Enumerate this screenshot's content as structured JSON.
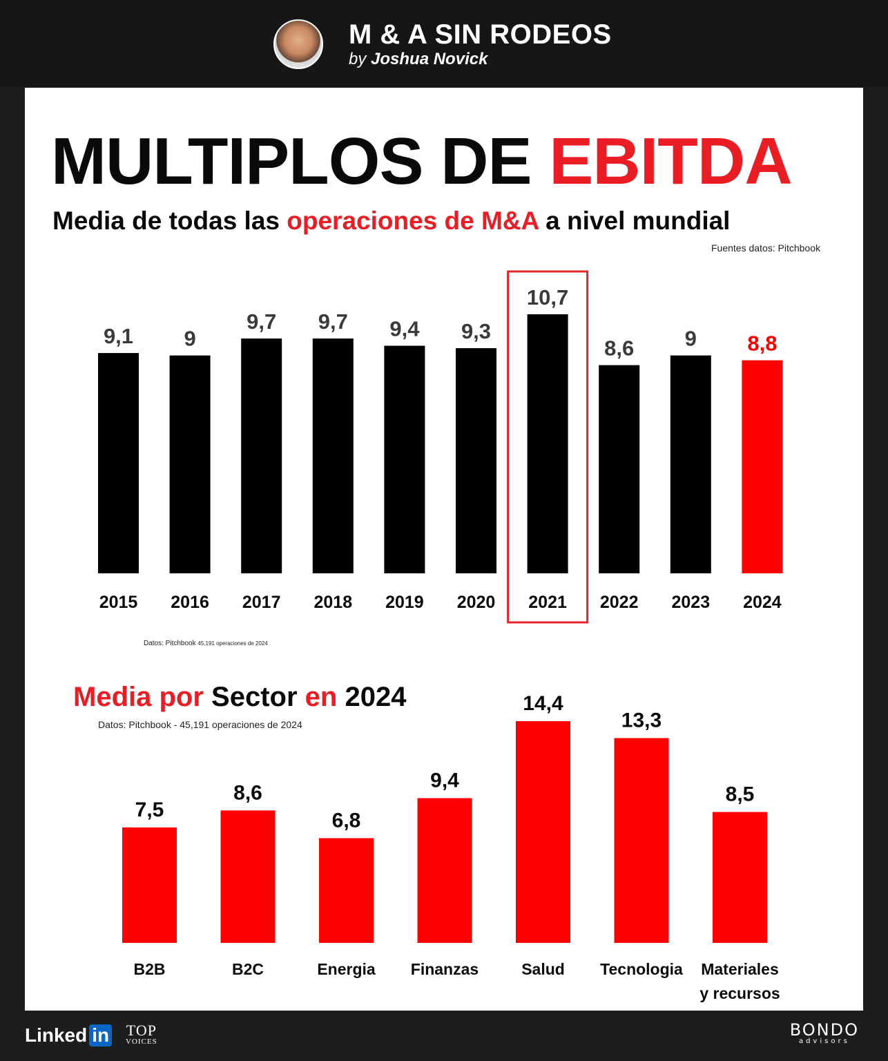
{
  "header": {
    "brand_title": "M & A SIN RODEOS",
    "brand_by_prefix": "by",
    "brand_by_name": "Joshua Novick"
  },
  "title": {
    "part1": "MULTIPLOS DE",
    "part2": "EBITDA"
  },
  "subtitle": {
    "part1": "Media de todas las",
    "part2": "operaciones de M&A",
    "part3": "a nivel mundial"
  },
  "source_top": "Fuentes datos: Pitchbook",
  "source_mid": {
    "prefix": "Datos: Pitchbook",
    "suffix": "45,191 operaciones de 2024"
  },
  "sector_title": {
    "part1": "Media por",
    "part2": "Sector",
    "part3": "en",
    "part4": "2024"
  },
  "source_sector": "Datos: Pitchbook - 45,191 operaciones de 2024",
  "footer": {
    "linkedin_text": "Linked",
    "linkedin_badge": "in",
    "top_label": "TOP",
    "voices_label": "VOICES",
    "bondo_name": "BONDO",
    "bondo_sub": "advisors"
  },
  "colors": {
    "black_bar": "#000000",
    "red_bar": "#ff0000",
    "highlight_box": "#e5262a",
    "accent_red": "#ea1c24"
  },
  "chart_data": [
    {
      "type": "bar",
      "title": "",
      "categories": [
        "2015",
        "2016",
        "2017",
        "2018",
        "2019",
        "2020",
        "2021",
        "2022",
        "2023",
        "2024"
      ],
      "values": [
        9.1,
        9,
        9.7,
        9.7,
        9.4,
        9.3,
        10.7,
        8.6,
        9,
        8.8
      ],
      "value_labels": [
        "9,1",
        "9",
        "9,7",
        "9,7",
        "9,4",
        "9,3",
        "10,7",
        "8,6",
        "9",
        "8,8"
      ],
      "bar_colors": [
        "black",
        "black",
        "black",
        "black",
        "black",
        "black",
        "black",
        "black",
        "black",
        "red"
      ],
      "highlight_category": "2021",
      "xlabel": "",
      "ylabel": "",
      "ylim": [
        0,
        10.7
      ],
      "grid": false
    },
    {
      "type": "bar",
      "title": "",
      "categories": [
        "B2B",
        "B2C",
        "Energia",
        "Finanzas",
        "Salud",
        "Tecnologia",
        "Materiales y recursos"
      ],
      "category_lines": [
        [
          "B2B"
        ],
        [
          "B2C"
        ],
        [
          "Energia"
        ],
        [
          "Finanzas"
        ],
        [
          "Salud"
        ],
        [
          "Tecnologia"
        ],
        [
          "Materiales",
          "y recursos"
        ]
      ],
      "values": [
        7.5,
        8.6,
        6.8,
        9.4,
        14.4,
        13.3,
        8.5
      ],
      "value_labels": [
        "7,5",
        "8,6",
        "6,8",
        "9,4",
        "14,4",
        "13,3",
        "8,5"
      ],
      "bar_color": "red",
      "xlabel": "",
      "ylabel": "",
      "ylim": [
        0,
        14.4
      ],
      "grid": false
    }
  ]
}
